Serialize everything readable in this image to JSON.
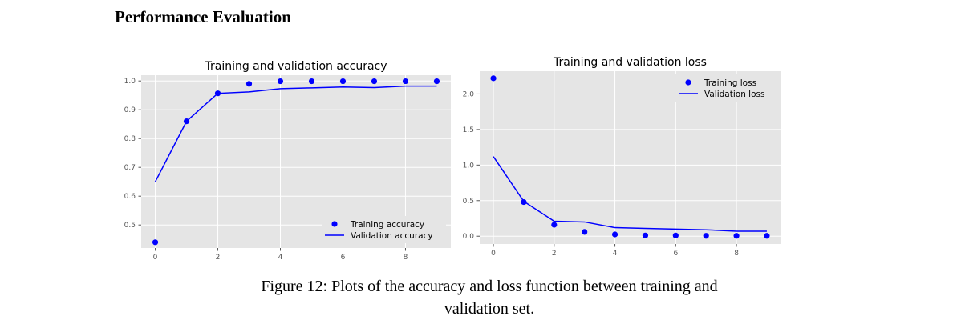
{
  "page": {
    "heading": "Performance Evaluation",
    "caption_line1": "Figure 12: Plots of the accuracy and loss function between training and",
    "caption_line2": "validation set."
  },
  "colors": {
    "plot_bg": "#e5e5e5",
    "grid": "#ffffff",
    "series": "#0000ff"
  },
  "chart_data": [
    {
      "type": "line",
      "title": "Training and validation accuracy",
      "xlabel": "",
      "ylabel": "",
      "x": [
        0,
        1,
        2,
        3,
        4,
        5,
        6,
        7,
        8,
        9
      ],
      "xlim": [
        -0.45,
        9.45
      ],
      "ylim": [
        0.42,
        1.02
      ],
      "xticks": [
        0,
        2,
        4,
        6,
        8
      ],
      "xtick_labels": [
        "0",
        "2",
        "4",
        "6",
        "8"
      ],
      "yticks": [
        0.5,
        0.6,
        0.7,
        0.8,
        0.9,
        1.0
      ],
      "ytick_labels": [
        "0.5",
        "0.6",
        "0.7",
        "0.8",
        "0.9",
        "1.0"
      ],
      "grid": true,
      "legend_position": "lower-right",
      "series": [
        {
          "name": "Training accuracy",
          "style": "dots",
          "values": [
            0.44,
            0.86,
            0.957,
            0.99,
            0.999,
            0.999,
            0.999,
            0.999,
            0.999,
            0.999
          ]
        },
        {
          "name": "Validation accuracy",
          "style": "line",
          "values": [
            0.65,
            0.86,
            0.957,
            0.962,
            0.973,
            0.976,
            0.979,
            0.977,
            0.982,
            0.982
          ]
        }
      ]
    },
    {
      "type": "line",
      "title": "Training and validation loss",
      "xlabel": "",
      "ylabel": "",
      "x": [
        0,
        1,
        2,
        3,
        4,
        5,
        6,
        7,
        8,
        9
      ],
      "xlim": [
        -0.45,
        9.45
      ],
      "ylim": [
        -0.11,
        2.32
      ],
      "xticks": [
        0,
        2,
        4,
        6,
        8
      ],
      "xtick_labels": [
        "0",
        "2",
        "4",
        "6",
        "8"
      ],
      "yticks": [
        0.0,
        0.5,
        1.0,
        1.5,
        2.0
      ],
      "ytick_labels": [
        "0.0",
        "0.5",
        "1.0",
        "1.5",
        "2.0"
      ],
      "grid": true,
      "legend_position": "top-right",
      "series": [
        {
          "name": "Training loss",
          "style": "dots",
          "values": [
            2.22,
            0.48,
            0.16,
            0.06,
            0.025,
            0.01,
            0.01,
            0.005,
            0.005,
            0.005
          ]
        },
        {
          "name": "Validation loss",
          "style": "line",
          "values": [
            1.12,
            0.49,
            0.21,
            0.2,
            0.12,
            0.11,
            0.1,
            0.09,
            0.07,
            0.07
          ]
        }
      ]
    }
  ]
}
